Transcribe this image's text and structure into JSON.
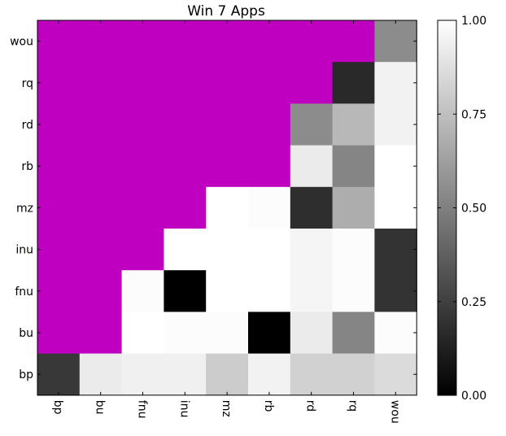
{
  "chart_data": {
    "type": "heatmap",
    "title": "Win 7 Apps",
    "xlabel": "",
    "ylabel": "",
    "x_labels": [
      "bp",
      "bu",
      "fnu",
      "inu",
      "mz",
      "rb",
      "rd",
      "rq",
      "wou"
    ],
    "y_labels": [
      "wou",
      "rq",
      "rd",
      "rb",
      "mz",
      "inu",
      "fnu",
      "bu",
      "bp"
    ],
    "masked_color": "#c000c0",
    "colormap": "gray",
    "vmin": 0.0,
    "vmax": 1.0,
    "colorbar_ticks": [
      "0.00",
      "0.25",
      "0.50",
      "0.75",
      "1.00"
    ],
    "colorbar_tick_values": [
      0.0,
      0.25,
      0.5,
      0.75,
      1.0
    ],
    "values": [
      [
        null,
        null,
        null,
        null,
        null,
        null,
        null,
        null,
        0.55
      ],
      [
        null,
        null,
        null,
        null,
        null,
        null,
        null,
        0.16,
        0.95
      ],
      [
        null,
        null,
        null,
        null,
        null,
        null,
        0.55,
        0.72,
        0.95
      ],
      [
        null,
        null,
        null,
        null,
        null,
        null,
        0.92,
        0.52,
        1.0
      ],
      [
        null,
        null,
        null,
        null,
        1.0,
        0.99,
        0.18,
        0.68,
        1.0
      ],
      [
        null,
        null,
        null,
        1.0,
        1.0,
        1.0,
        0.96,
        0.99,
        0.2
      ],
      [
        null,
        null,
        0.99,
        0.0,
        1.0,
        1.0,
        0.96,
        0.99,
        0.2
      ],
      [
        null,
        null,
        1.0,
        0.99,
        0.99,
        0.0,
        0.92,
        0.52,
        0.99
      ],
      [
        0.22,
        0.92,
        0.94,
        0.94,
        0.8,
        0.95,
        0.82,
        0.82,
        0.86
      ]
    ]
  }
}
